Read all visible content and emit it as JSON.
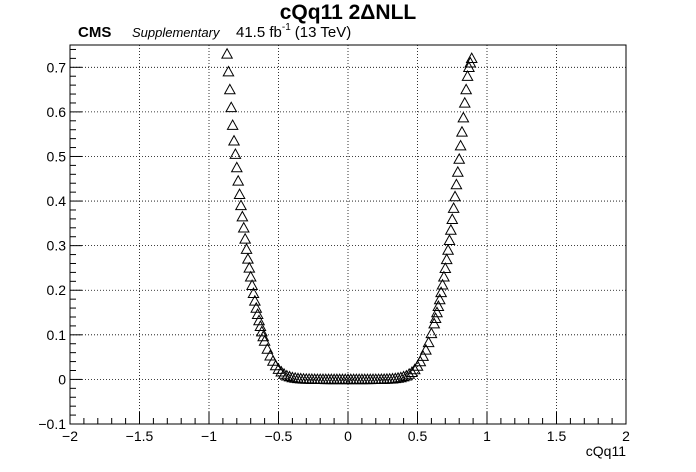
{
  "header": {
    "experiment": "CMS",
    "tag": "Supplementary",
    "lumi_value": "41.5 fb",
    "lumi_exponent": "-1",
    "energy": "(13 TeV)"
  },
  "chart_data": {
    "type": "scatter",
    "title": "cQq11 2ΔNLL",
    "xlabel": "cQq11",
    "ylabel": "",
    "xlim": [
      -2,
      2
    ],
    "ylim": [
      -0.1,
      0.75
    ],
    "grid": true,
    "marker": "open-triangle",
    "x_ticks": [
      "−2",
      "−1.5",
      "−1",
      "−0.5",
      "0",
      "0.5",
      "1",
      "1.5",
      "2"
    ],
    "y_ticks": [
      "−0.1",
      "0",
      "0.1",
      "0.2",
      "0.3",
      "0.4",
      "0.5",
      "0.6",
      "0.7"
    ],
    "x_tick_values": [
      -2,
      -1.5,
      -1,
      -0.5,
      0,
      0.5,
      1,
      1.5,
      2
    ],
    "y_tick_values": [
      -0.1,
      0,
      0.1,
      0.2,
      0.3,
      0.4,
      0.5,
      0.6,
      0.7
    ],
    "series": [
      {
        "x": [
          -0.87,
          -0.86,
          -0.85,
          -0.84,
          -0.83,
          -0.82,
          -0.81,
          -0.8,
          -0.79,
          -0.78,
          -0.77,
          -0.76,
          -0.75,
          -0.74,
          -0.73,
          -0.72,
          -0.71,
          -0.7,
          -0.69,
          -0.68,
          -0.67,
          -0.66,
          -0.65,
          -0.64,
          -0.63,
          -0.62,
          -0.61,
          -0.6,
          -0.58,
          -0.56,
          -0.54,
          -0.52,
          -0.5,
          -0.48,
          -0.46,
          -0.44,
          -0.42,
          -0.4,
          -0.38,
          -0.36,
          -0.34,
          -0.32,
          -0.3,
          -0.28,
          -0.26,
          -0.24,
          -0.22,
          -0.2,
          -0.18,
          -0.16,
          -0.14,
          -0.12,
          -0.1,
          -0.08,
          -0.06,
          -0.04,
          -0.02,
          0.0,
          0.02,
          0.04,
          0.06,
          0.08,
          0.1,
          0.12,
          0.14,
          0.16,
          0.18,
          0.2,
          0.22,
          0.24,
          0.26,
          0.28,
          0.3,
          0.32,
          0.34,
          0.36,
          0.38,
          0.4,
          0.42,
          0.44,
          0.46,
          0.48,
          0.5,
          0.52,
          0.54,
          0.56,
          0.58,
          0.6,
          0.62,
          0.63,
          0.64,
          0.65,
          0.66,
          0.67,
          0.68,
          0.69,
          0.7,
          0.71,
          0.72,
          0.73,
          0.74,
          0.75,
          0.76,
          0.77,
          0.78,
          0.79,
          0.8,
          0.81,
          0.82,
          0.83,
          0.84,
          0.85,
          0.86,
          0.87,
          0.88,
          0.89
        ],
        "y": [
          0.73,
          0.69,
          0.65,
          0.61,
          0.57,
          0.535,
          0.505,
          0.475,
          0.445,
          0.415,
          0.39,
          0.365,
          0.34,
          0.315,
          0.292,
          0.27,
          0.25,
          0.23,
          0.211,
          0.193,
          0.176,
          0.16,
          0.146,
          0.132,
          0.119,
          0.107,
          0.096,
          0.086,
          0.068,
          0.053,
          0.041,
          0.031,
          0.023,
          0.017,
          0.012,
          0.008,
          0.006,
          0.004,
          0.003,
          0.002,
          0.0015,
          0.001,
          0.0008,
          0.0006,
          0.0004,
          0.0003,
          0.0002,
          0.0001,
          0.0001,
          0.0,
          0.0,
          0.0,
          0.0,
          0.0,
          0.0,
          0.0,
          0.0,
          0.0,
          0.0,
          0.0,
          0.0,
          0.0,
          0.0,
          0.0,
          0.0,
          0.0,
          0.0001,
          0.0001,
          0.0002,
          0.0003,
          0.0005,
          0.0007,
          0.001,
          0.0014,
          0.002,
          0.003,
          0.004,
          0.006,
          0.008,
          0.012,
          0.016,
          0.022,
          0.03,
          0.04,
          0.052,
          0.066,
          0.083,
          0.103,
          0.125,
          0.137,
          0.15,
          0.164,
          0.179,
          0.195,
          0.212,
          0.23,
          0.249,
          0.269,
          0.29,
          0.312,
          0.335,
          0.359,
          0.384,
          0.41,
          0.437,
          0.465,
          0.494,
          0.524,
          0.555,
          0.587,
          0.62,
          0.65,
          0.68,
          0.7,
          0.71,
          0.72
        ]
      }
    ]
  }
}
